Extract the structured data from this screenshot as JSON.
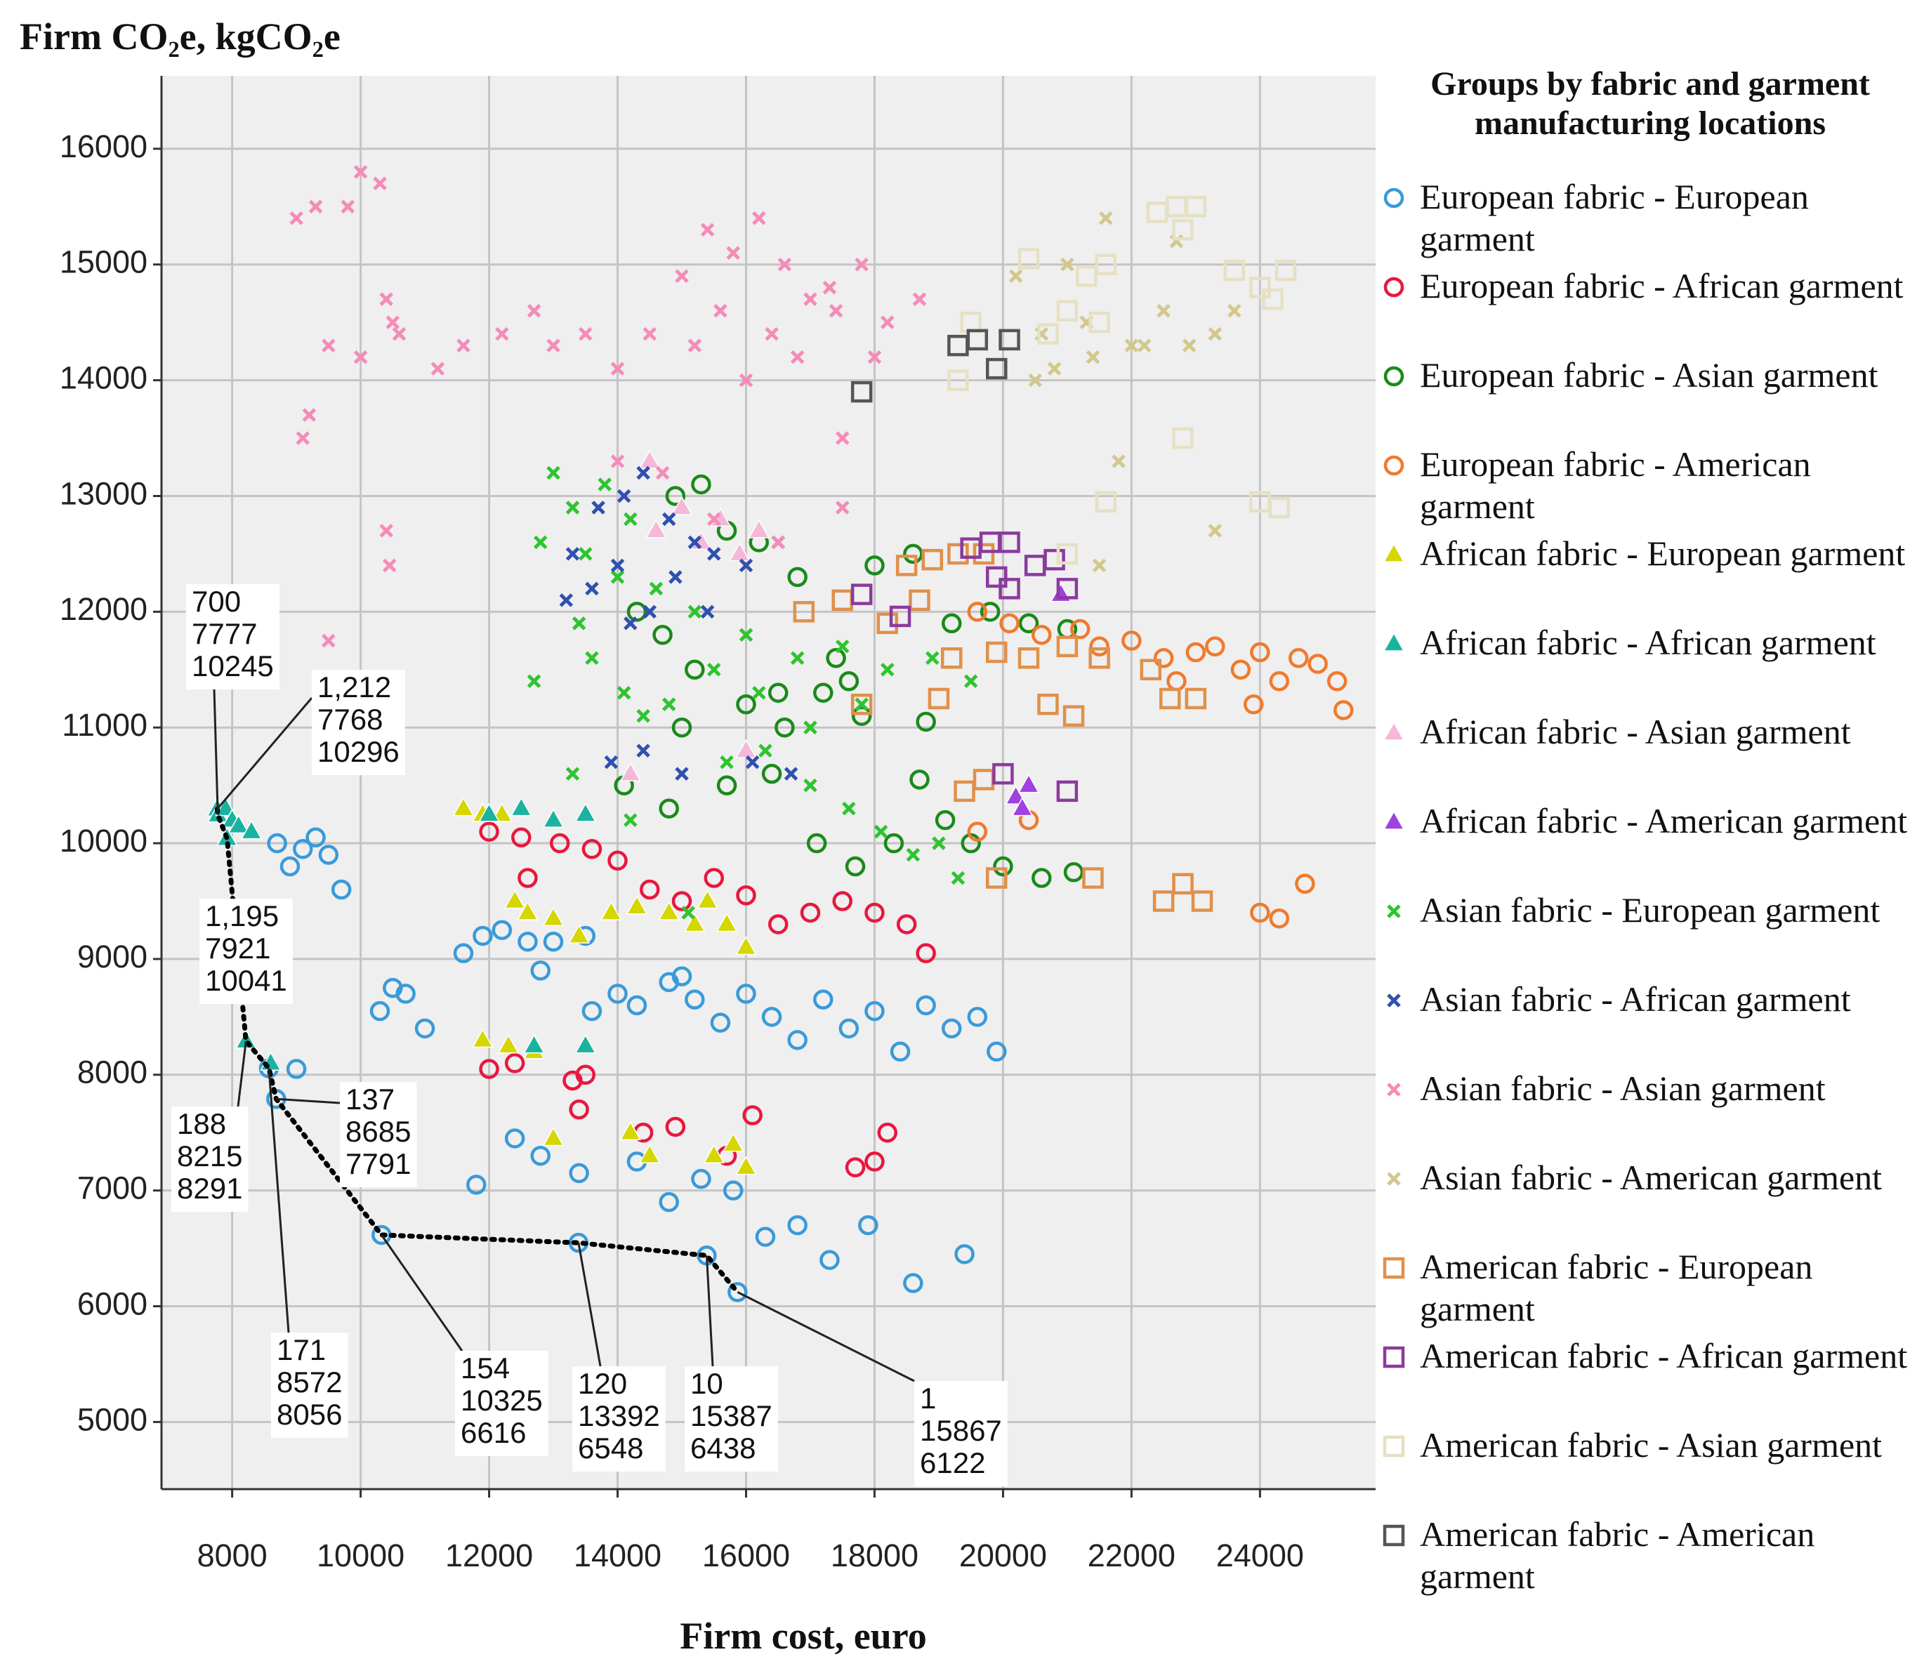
{
  "chart_data": {
    "type": "scatter",
    "title": "Firm CO₂e, kgCO₂e",
    "x_label": "Firm cost, euro",
    "legend_title": "Groups by fabric and garment manufacturing locations",
    "legend": "right",
    "grid": true,
    "xlim": [
      6900,
      25800
    ],
    "ylim": [
      4420,
      16630
    ],
    "xticks": [
      8000,
      10000,
      12000,
      14000,
      16000,
      18000,
      20000,
      22000,
      24000
    ],
    "yticks": [
      5000,
      6000,
      7000,
      8000,
      9000,
      10000,
      11000,
      12000,
      13000,
      14000,
      15000,
      16000
    ],
    "series": [
      {
        "name": "European fabric - European garment",
        "color": "#3a9ad9",
        "marker": "circle",
        "x": [
          8700,
          8900,
          9100,
          9300,
          9500,
          9700,
          10300,
          10500,
          10700,
          11000,
          11600,
          11900,
          12200,
          12600,
          13000,
          13500,
          13600,
          14000,
          14300,
          14800,
          15200,
          15600,
          16000,
          16400,
          16800,
          17200,
          17600,
          18000,
          18400,
          18800,
          19200,
          19600,
          19900,
          12400,
          12800,
          13400,
          14300,
          14800,
          15300,
          15800,
          10325,
          13392,
          15387,
          15867,
          16300,
          16800,
          17300,
          17900,
          18600,
          19400,
          11800,
          8685,
          8572,
          9000,
          12800,
          15000
        ],
        "y": [
          10000,
          9800,
          9950,
          10050,
          9900,
          9600,
          8550,
          8750,
          8700,
          8400,
          9050,
          9200,
          9250,
          9150,
          9150,
          9200,
          8550,
          8700,
          8600,
          8800,
          8650,
          8450,
          8700,
          8500,
          8300,
          8650,
          8400,
          8550,
          8200,
          8600,
          8400,
          8500,
          8200,
          7450,
          7300,
          7150,
          7250,
          6900,
          7100,
          7000,
          6616,
          6548,
          6438,
          6122,
          6600,
          6700,
          6400,
          6700,
          6200,
          6450,
          7050,
          7791,
          8056,
          8050,
          8900,
          8850
        ]
      },
      {
        "name": "European fabric - African garment",
        "color": "#e8173f",
        "marker": "circle",
        "x": [
          12000,
          12500,
          13100,
          13600,
          14000,
          14500,
          15000,
          15500,
          16000,
          16500,
          17000,
          17500,
          18000,
          18500,
          18800,
          12000,
          12400,
          13300,
          13500,
          13400,
          14400,
          14900,
          16100,
          17700,
          18000,
          18200,
          15700,
          12600
        ],
        "y": [
          10100,
          10050,
          10000,
          9950,
          9850,
          9600,
          9500,
          9700,
          9550,
          9300,
          9400,
          9500,
          9400,
          9300,
          9050,
          8050,
          8100,
          7950,
          8000,
          7700,
          7500,
          7550,
          7650,
          7200,
          7250,
          7500,
          7300,
          9700
        ]
      },
      {
        "name": "European fabric - Asian garment",
        "color": "#1a8a1a",
        "marker": "circle",
        "x": [
          14900,
          15300,
          15700,
          14300,
          14700,
          16200,
          16800,
          17400,
          18000,
          18600,
          19200,
          19800,
          20400,
          21000,
          15200,
          16000,
          16600,
          17200,
          17800,
          18800,
          15000,
          16500,
          17600,
          14100,
          14800,
          15700,
          16400,
          17100,
          17700,
          18300,
          18700,
          19100,
          19500,
          20000,
          20600,
          21100
        ],
        "y": [
          13000,
          13100,
          12700,
          12000,
          11800,
          12600,
          12300,
          11600,
          12400,
          12500,
          11900,
          12000,
          11900,
          11850,
          11500,
          11200,
          11000,
          11300,
          11100,
          11050,
          11000,
          11300,
          11400,
          10500,
          10300,
          10500,
          10600,
          10000,
          9800,
          10000,
          10550,
          10200,
          10000,
          9800,
          9700,
          9750
        ]
      },
      {
        "name": "European fabric - American garment",
        "color": "#f07a2e",
        "marker": "circle",
        "x": [
          19600,
          20100,
          20600,
          21500,
          22000,
          22500,
          23000,
          23300,
          23700,
          24000,
          24300,
          24600,
          24900,
          25200,
          25300,
          21200,
          22700,
          23900,
          19600,
          20400,
          24000,
          24300,
          24700
        ],
        "y": [
          12000,
          11900,
          11800,
          11700,
          11750,
          11600,
          11650,
          11700,
          11500,
          11650,
          11400,
          11600,
          11550,
          11400,
          11150,
          11850,
          11400,
          11200,
          10100,
          10200,
          9400,
          9350,
          9650
        ]
      },
      {
        "name": "African fabric - European garment",
        "color": "#d6d600",
        "marker": "triangle",
        "x": [
          11600,
          11900,
          12200,
          12400,
          12600,
          13000,
          13400,
          13900,
          14300,
          14800,
          15200,
          15400,
          15700,
          16000,
          11900,
          12300,
          12700,
          13000,
          14200,
          14500,
          15500,
          15800,
          16000
        ],
        "y": [
          10300,
          10250,
          10250,
          9500,
          9400,
          9350,
          9200,
          9400,
          9450,
          9400,
          9300,
          9500,
          9300,
          9100,
          8300,
          8250,
          8200,
          7450,
          7500,
          7300,
          7300,
          7400,
          7200
        ]
      },
      {
        "name": "African fabric - African garment",
        "color": "#1ab3a0",
        "marker": "triangle",
        "x": [
          7768,
          7777,
          7900,
          8000,
          8100,
          8300,
          12000,
          12500,
          13000,
          13500,
          8215,
          8600,
          12700,
          13500,
          7921
        ],
        "y": [
          10296,
          10245,
          10300,
          10200,
          10150,
          10100,
          10250,
          10300,
          10200,
          10250,
          8291,
          8100,
          8250,
          8250,
          10041
        ]
      },
      {
        "name": "African fabric - Asian garment",
        "color": "#f5b8d8",
        "marker": "triangle",
        "x": [
          14600,
          15000,
          15300,
          15600,
          15900,
          16200,
          14500,
          16000,
          14200
        ],
        "y": [
          12700,
          12900,
          12600,
          12800,
          12500,
          12700,
          13300,
          10800,
          10600
        ]
      },
      {
        "name": "African fabric - American garment",
        "color": "#a040e0",
        "marker": "triangle",
        "x": [
          20200,
          20300,
          20400,
          20900
        ],
        "y": [
          10400,
          10300,
          10500,
          12150
        ]
      },
      {
        "name": "Asian fabric - European garment",
        "color": "#2ec42e",
        "marker": "x",
        "x": [
          13000,
          13300,
          13800,
          14200,
          12800,
          13500,
          14000,
          14600,
          15200,
          16000,
          16800,
          17500,
          18200,
          18900,
          19500,
          13400,
          14100,
          14800,
          15500,
          16200,
          17000,
          17800,
          12700,
          13600,
          14400,
          15700,
          16300,
          17000,
          17600,
          18100,
          18600,
          19000,
          19300,
          13300,
          14200,
          15100
        ],
        "y": [
          13200,
          12900,
          13100,
          12800,
          12600,
          12500,
          12300,
          12200,
          12000,
          11800,
          11600,
          11700,
          11500,
          11600,
          11400,
          11900,
          11300,
          11200,
          11500,
          11300,
          11000,
          11200,
          11400,
          11600,
          11100,
          10700,
          10800,
          10500,
          10300,
          10100,
          9900,
          10000,
          9700,
          10600,
          10200,
          9400
        ]
      },
      {
        "name": "Asian fabric - African garment",
        "color": "#3050b0",
        "marker": "x",
        "x": [
          13300,
          13700,
          14100,
          14400,
          14800,
          15200,
          13600,
          14000,
          14500,
          14900,
          15500,
          16000,
          16500,
          13200,
          14200,
          15400,
          13900,
          14400,
          15000,
          16100,
          16700
        ],
        "y": [
          12500,
          12900,
          13000,
          13200,
          12800,
          12600,
          12200,
          12400,
          12000,
          12300,
          12500,
          12400,
          12600,
          12100,
          11900,
          12000,
          10700,
          10800,
          10600,
          10700,
          10600
        ]
      },
      {
        "name": "Asian fabric - Asian garment",
        "color": "#f58bb8",
        "marker": "x",
        "x": [
          9000,
          9300,
          9800,
          10000,
          10300,
          10400,
          10500,
          9500,
          9200,
          9100,
          10000,
          10600,
          11200,
          11600,
          12200,
          12700,
          13000,
          13500,
          14000,
          14500,
          15000,
          15400,
          15800,
          16200,
          16600,
          17000,
          17400,
          17800,
          18200,
          18700,
          15200,
          16000,
          16800,
          17500,
          15600,
          16400,
          17300,
          18000,
          14000,
          14700,
          15500,
          16500,
          17500,
          9500,
          10400,
          10450
        ],
        "y": [
          15400,
          15500,
          15500,
          15800,
          15700,
          14700,
          14500,
          14300,
          13700,
          13500,
          14200,
          14400,
          14100,
          14300,
          14400,
          14600,
          14300,
          14400,
          14100,
          14400,
          14900,
          15300,
          15100,
          15400,
          15000,
          14700,
          14600,
          15000,
          14500,
          14700,
          14300,
          14000,
          14200,
          13500,
          14600,
          14400,
          14800,
          14200,
          13300,
          13200,
          12800,
          12600,
          12900,
          11750,
          12700,
          12400
        ]
      },
      {
        "name": "Asian fabric - American garment",
        "color": "#d2c88c",
        "marker": "x",
        "x": [
          20200,
          20600,
          21000,
          21300,
          21600,
          22000,
          22500,
          22900,
          23300,
          23600,
          20800,
          21400,
          22200,
          22700,
          21800,
          21500,
          23300,
          20500
        ],
        "y": [
          14900,
          14400,
          15000,
          14500,
          15400,
          14300,
          14600,
          14300,
          14400,
          14600,
          14100,
          14200,
          14300,
          15200,
          13300,
          12400,
          12700,
          14000
        ]
      },
      {
        "name": "American fabric - European garment",
        "color": "#e0904a",
        "marker": "square",
        "x": [
          16900,
          17500,
          18500,
          18900,
          19300,
          19700,
          19200,
          19900,
          20400,
          21000,
          21500,
          20700,
          21100,
          17800,
          19000,
          19400,
          19700,
          19900,
          21400,
          22500,
          22800,
          23100,
          22600,
          23000,
          22300,
          18200,
          18700
        ],
        "y": [
          12000,
          12100,
          12400,
          12450,
          12500,
          12500,
          11600,
          11650,
          11600,
          11700,
          11600,
          11200,
          11100,
          11200,
          11250,
          10450,
          10550,
          9700,
          9700,
          9500,
          9650,
          9500,
          11250,
          11250,
          11500,
          11900,
          12100
        ]
      },
      {
        "name": "American fabric - African garment",
        "color": "#8b3a9e",
        "marker": "square",
        "x": [
          17800,
          18400,
          19500,
          19800,
          20100,
          20500,
          20800,
          19900,
          20100,
          21000,
          20000,
          21000
        ],
        "y": [
          12150,
          11960,
          12550,
          12600,
          12600,
          12400,
          12450,
          12300,
          12200,
          12200,
          10600,
          10450
        ]
      },
      {
        "name": "American fabric - Asian garment",
        "color": "#e6e0c4",
        "marker": "square",
        "x": [
          19500,
          19300,
          20400,
          20700,
          21300,
          21600,
          21000,
          22400,
          22700,
          23000,
          22800,
          23600,
          24000,
          24400,
          24200,
          22800,
          24000,
          24300,
          21600,
          21000,
          21500
        ],
        "y": [
          14500,
          14000,
          15050,
          14400,
          14900,
          15000,
          14600,
          15450,
          15500,
          15500,
          15300,
          14950,
          14800,
          14950,
          14700,
          13500,
          12950,
          12900,
          12950,
          12500,
          14500
        ]
      },
      {
        "name": "American fabric - American garment",
        "color": "#555555",
        "marker": "square",
        "x": [
          17800,
          19300,
          19600,
          19900,
          20100
        ],
        "y": [
          13900,
          14300,
          14350,
          14100,
          14350
        ]
      }
    ],
    "pareto_front": {
      "labels": [
        {
          "value": 1212,
          "label": "1,212"
        },
        700,
        {
          "value": 1195,
          "label": "1,195"
        },
        188,
        171,
        137,
        154,
        120,
        10,
        1
      ],
      "x": [
        7768,
        7777,
        7921,
        8215,
        8572,
        8685,
        10325,
        13392,
        15387,
        15867
      ],
      "y": [
        10296,
        10245,
        10041,
        8291,
        8056,
        7791,
        6616,
        6548,
        6438,
        6122
      ]
    }
  }
}
